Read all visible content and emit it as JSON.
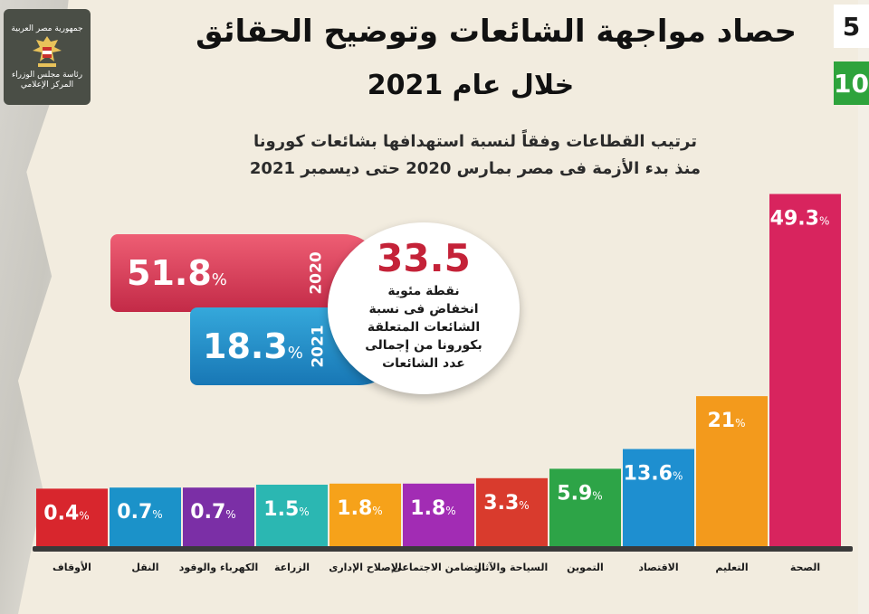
{
  "header": {
    "title_line1": "حصاد مواجهة الشائعات وتوضيح الحقائق",
    "title_line2": "خلال عام 2021",
    "page_current": "5",
    "page_total": "10"
  },
  "logo": {
    "line1": "جمهورية مصر العربية",
    "line2": "رئاسة مجلس الوزراء",
    "line3": "المركز الإعلامي"
  },
  "subtitle": {
    "line1": "ترتيب القطاعات وفقاً لنسبة استهدافها بشائعات كورونا",
    "line2": "منذ بدء الأزمة فى مصر بمارس 2020 حتى ديسمبر 2021"
  },
  "comparison": {
    "y2020": {
      "year": "2020",
      "value": "51.8",
      "unit": "%"
    },
    "y2021": {
      "year": "2021",
      "value": "18.3",
      "unit": "%"
    },
    "drop_value": "33.5",
    "drop_text_1": "نقطة مئوية",
    "drop_text_2": "انخفاض فى نسبة",
    "drop_text_3": "الشائعات المتعلقة",
    "drop_text_4": "بكورونا من إجمالى",
    "drop_text_5": "عدد الشائعات"
  },
  "chart_data": {
    "type": "bar",
    "categories": [
      "الأوقاف",
      "النقل",
      "الكهرباء والوقود",
      "الزراعة",
      "الإصلاح الإدارى",
      "التضامن الاجتماعى",
      "السياحة والآثار",
      "التموين",
      "الاقتصاد",
      "التعليم",
      "الصحة"
    ],
    "values": [
      0.4,
      0.7,
      0.7,
      1.5,
      1.8,
      1.8,
      3.3,
      5.9,
      13.6,
      21,
      49.3
    ],
    "value_labels": [
      "0.4",
      "0.7",
      "0.7",
      "1.5",
      "1.8",
      "1.8",
      "3.3",
      "5.9",
      "13.6",
      "21",
      "49.3"
    ],
    "unit": "%",
    "colors": [
      "#d8262d",
      "#1b92c9",
      "#7b2fa6",
      "#2bb7b2",
      "#f6a21a",
      "#a22cb4",
      "#d93b2d",
      "#2da447",
      "#1e8fd0",
      "#f39a1c",
      "#d8245e"
    ],
    "title": "",
    "xlabel": "",
    "ylabel": "",
    "ylim": [
      0,
      50
    ],
    "grid": false,
    "legend": "none"
  }
}
